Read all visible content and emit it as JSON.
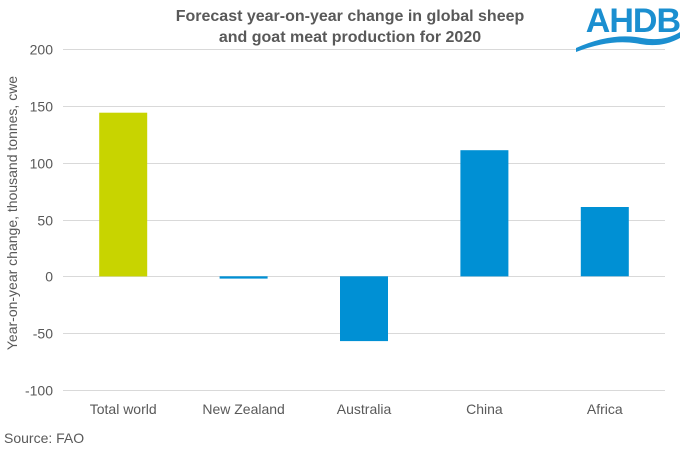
{
  "chart_data": {
    "type": "bar",
    "title": "Forecast year-on-year change in global sheep and goat meat production for 2020",
    "title_lines": [
      "Forecast year-on-year change in global sheep",
      "and goat meat production for 2020"
    ],
    "xlabel": "",
    "ylabel": "Year-on-year change, thousand tonnes, cwe",
    "categories": [
      "Total world",
      "New Zealand",
      "Australia",
      "China",
      "Africa"
    ],
    "values": [
      144,
      -2,
      -57,
      111,
      61
    ],
    "colors": [
      "#c8d400",
      "#0090d4",
      "#0090d4",
      "#0090d4",
      "#0090d4"
    ],
    "ylim": [
      -100,
      200
    ],
    "yticks": [
      200,
      150,
      100,
      50,
      0,
      -50,
      -100
    ],
    "ytick_labels": [
      "200",
      "150",
      "100",
      "50",
      "0",
      "-50",
      "-100"
    ],
    "grid": true,
    "legend": "none"
  },
  "source": "Source: FAO",
  "logo": {
    "text": "AHDB",
    "color": "#1b8fd0"
  },
  "colors": {
    "gridline": "#d9d9d9",
    "text": "#595959"
  }
}
